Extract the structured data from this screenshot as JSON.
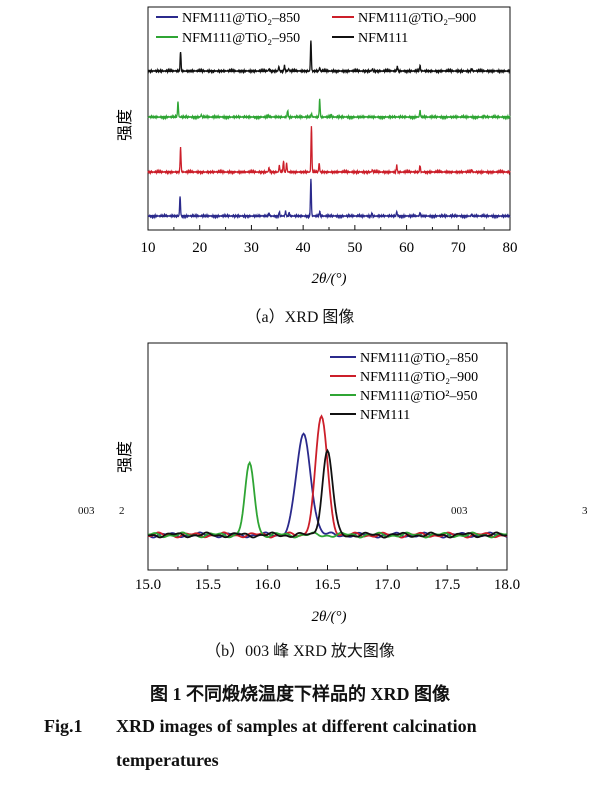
{
  "figure": {
    "caption_cn": "图 1   不同煅烧温度下样品的 XRD 图像",
    "caption_en_label": "Fig.1",
    "caption_en_line1": "XRD images of samples at different calcination",
    "caption_en_line2": "temperatures"
  },
  "stray_labels": [
    "003",
    "2",
    "003",
    "3"
  ],
  "chart_data": [
    {
      "type": "line",
      "subplot_caption": "（a）XRD 图像",
      "xlabel": "2θ/(°)",
      "ylabel": "强度",
      "xlim": [
        10,
        80
      ],
      "xticks": [
        10,
        20,
        30,
        40,
        50,
        60,
        70,
        80
      ],
      "ytick_labels": "none",
      "grid": false,
      "legend": "top",
      "layout": "stacked offsets (top to bottom: NFM111, NFM111@TiO2-950, NFM111@TiO2-900, NFM111@TiO2-850)",
      "series": [
        {
          "name": "NFM111@TiO₂–850",
          "color": "#2b2a8c",
          "baseline": 0,
          "peaks": [
            [
              16.2,
              9
            ],
            [
              33.4,
              1.2
            ],
            [
              35.4,
              1.8
            ],
            [
              36.6,
              2.2
            ],
            [
              37.3,
              1.4
            ],
            [
              41.5,
              17
            ],
            [
              43.2,
              2
            ],
            [
              53.3,
              1
            ],
            [
              58.1,
              2
            ],
            [
              62.6,
              1.5
            ],
            [
              72.6,
              0.8
            ]
          ]
        },
        {
          "name": "NFM111@TiO₂–900",
          "color": "#cc1f2a",
          "baseline": 1,
          "peaks": [
            [
              16.3,
              11
            ],
            [
              33.4,
              2
            ],
            [
              35.4,
              3
            ],
            [
              36.2,
              5
            ],
            [
              36.8,
              4
            ],
            [
              41.6,
              21
            ],
            [
              43.1,
              4
            ],
            [
              53.4,
              1
            ],
            [
              58.1,
              3
            ],
            [
              62.6,
              3
            ],
            [
              72.6,
              1
            ]
          ]
        },
        {
          "name": "NFM111@TiO₂–950",
          "color": "#2fa534",
          "baseline": 2,
          "peaks": [
            [
              15.8,
              7
            ],
            [
              20.3,
              1
            ],
            [
              33.2,
              0.8
            ],
            [
              37.0,
              3
            ],
            [
              41.6,
              1.5
            ],
            [
              43.2,
              8
            ],
            [
              45.4,
              1
            ],
            [
              62.6,
              3
            ],
            [
              75.0,
              0.6
            ]
          ]
        },
        {
          "name": "NFM111",
          "color": "#111111",
          "baseline": 3,
          "peaks": [
            [
              16.3,
              9
            ],
            [
              33.4,
              1
            ],
            [
              35.3,
              2
            ],
            [
              36.4,
              2.5
            ],
            [
              37.2,
              1
            ],
            [
              41.5,
              14
            ],
            [
              43.2,
              1.5
            ],
            [
              53.4,
              1
            ],
            [
              58.2,
              2
            ],
            [
              62.6,
              2.5
            ],
            [
              72.6,
              0.8
            ]
          ]
        }
      ]
    },
    {
      "type": "line",
      "subplot_caption": "（b）003 峰 XRD 放大图像",
      "xlabel": "2θ/(°)",
      "ylabel": "强度",
      "xlim": [
        15.0,
        18.0
      ],
      "xticks": [
        15.0,
        15.5,
        16.0,
        16.5,
        17.0,
        17.5,
        18.0
      ],
      "ytick_labels": "none",
      "grid": false,
      "legend": "top-right",
      "series": [
        {
          "name": "NFM111@TiO₂–850",
          "color": "#2b2a8c",
          "center": 16.3,
          "width": 0.085,
          "height": 100
        },
        {
          "name": "NFM111@TiO₂–900",
          "color": "#cc1f2a",
          "center": 16.45,
          "width": 0.07,
          "height": 118
        },
        {
          "name": "NFM111@TiO²–950",
          "color": "#2fa534",
          "center": 15.85,
          "width": 0.055,
          "height": 70
        },
        {
          "name": "NFM111",
          "color": "#111111",
          "center": 16.5,
          "width": 0.06,
          "height": 84
        }
      ]
    }
  ]
}
